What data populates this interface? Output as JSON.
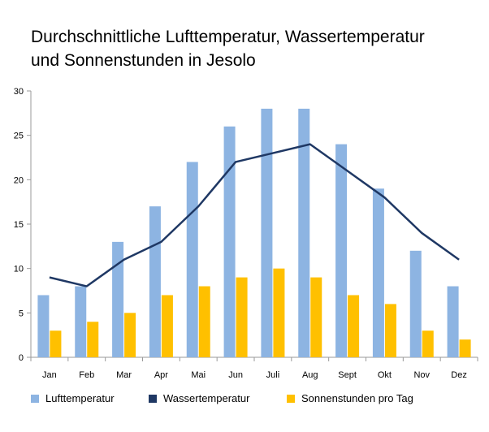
{
  "chart_data": {
    "type": "bar",
    "title_lines": [
      "Durchschnittliche Lufttemperatur, Wassertemperatur",
      "und Sonnenstunden in Jesolo"
    ],
    "categories": [
      "Jan",
      "Feb",
      "Mar",
      "Apr",
      "Mai",
      "Jun",
      "Juli",
      "Aug",
      "Sept",
      "Okt",
      "Nov",
      "Dez"
    ],
    "ylim": [
      0,
      30
    ],
    "yticks": [
      "0",
      "5",
      "10",
      "15",
      "20",
      "25",
      "30"
    ],
    "grid": false,
    "legend_position": "bottom",
    "series": [
      {
        "name": "Lufttemperatur",
        "type": "bar",
        "color": "#8db4e2",
        "values": [
          7,
          8,
          13,
          17,
          22,
          26,
          28,
          28,
          24,
          19,
          12,
          8
        ]
      },
      {
        "name": "Wassertemperatur",
        "type": "line",
        "color": "#1f3864",
        "values": [
          9,
          8,
          11,
          13,
          17,
          22,
          23,
          24,
          21,
          18,
          14,
          11
        ]
      },
      {
        "name": "Sonnenstunden pro Tag",
        "type": "bar",
        "color": "#ffc000",
        "values": [
          3,
          4,
          5,
          7,
          8,
          9,
          10,
          9,
          7,
          6,
          3,
          2
        ]
      }
    ]
  }
}
